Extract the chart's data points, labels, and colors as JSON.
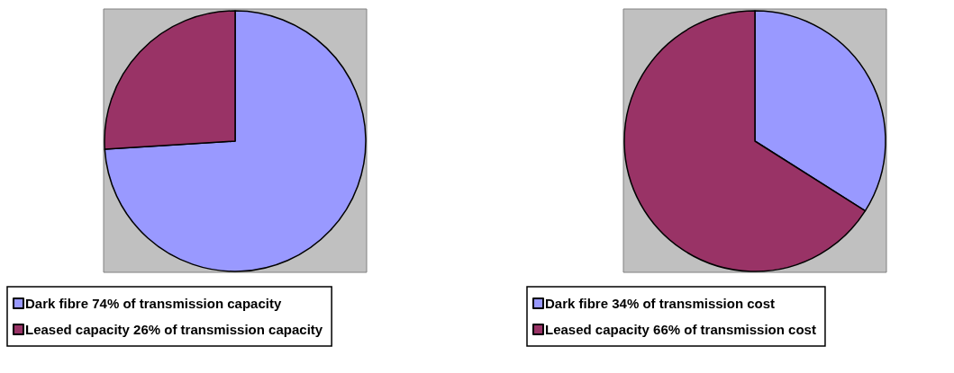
{
  "chart_data": [
    {
      "type": "pie",
      "categories": [
        "Dark fibre 74% of transmission capacity",
        "Leased capacity 26% of transmission capacity"
      ],
      "values": [
        74,
        26
      ],
      "colors": [
        "#9999ff",
        "#993366"
      ],
      "legend": "bottom"
    },
    {
      "type": "pie",
      "categories": [
        "Dark fibre 34% of transmission cost",
        "Leased capacity 66% of transmission cost"
      ],
      "values": [
        34,
        66
      ],
      "colors": [
        "#9999ff",
        "#993366"
      ],
      "legend": "bottom"
    }
  ]
}
